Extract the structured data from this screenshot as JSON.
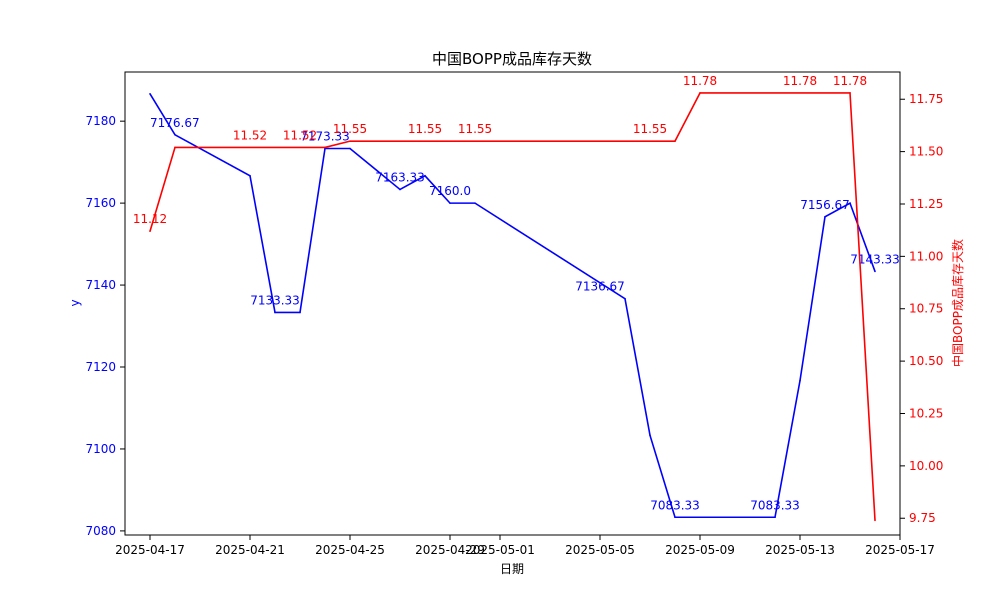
{
  "chart_data": {
    "type": "line",
    "title": "中国BOPP成品库存天数",
    "xlabel": "日期",
    "ylabel_left": "y",
    "ylabel_right": "中国BOPP成品库存天数",
    "x_tick_labels": [
      "2025-04-17",
      "2025-04-21",
      "2025-04-25",
      "2025-04-29",
      "2025-05-01",
      "2025-05-05",
      "2025-05-09",
      "2025-05-13",
      "2025-05-17"
    ],
    "xlim": [
      "2025-04-16",
      "2025-05-17"
    ],
    "ylim_left": [
      7079,
      7192
    ],
    "ylim_right": [
      9.67,
      11.88
    ],
    "left_ticks": [
      "7080",
      "7100",
      "7120",
      "7140",
      "7160",
      "7180"
    ],
    "right_ticks": [
      "9.75",
      "10.00",
      "10.25",
      "10.50",
      "10.75",
      "11.00",
      "11.25",
      "11.50",
      "11.75"
    ],
    "series": [
      {
        "axis": "left",
        "color": "#0000ff",
        "points": [
          {
            "x": "2025-04-17",
            "y": 7186.67
          },
          {
            "x": "2025-04-18",
            "y": 7176.67
          },
          {
            "x": "2025-04-21",
            "y": 7166.67
          },
          {
            "x": "2025-04-22",
            "y": 7133.33
          },
          {
            "x": "2025-04-23",
            "y": 7133.33
          },
          {
            "x": "2025-04-24",
            "y": 7173.33
          },
          {
            "x": "2025-04-25",
            "y": 7173.33
          },
          {
            "x": "2025-04-27",
            "y": 7163.33
          },
          {
            "x": "2025-04-28",
            "y": 7166.67
          },
          {
            "x": "2025-04-29",
            "y": 7160.0
          },
          {
            "x": "2025-04-30",
            "y": 7160.0
          },
          {
            "x": "2025-05-06",
            "y": 7136.67
          },
          {
            "x": "2025-05-07",
            "y": 7103.33
          },
          {
            "x": "2025-05-08",
            "y": 7083.33
          },
          {
            "x": "2025-05-12",
            "y": 7083.33
          },
          {
            "x": "2025-05-13",
            "y": 7116.67
          },
          {
            "x": "2025-05-14",
            "y": 7156.67
          },
          {
            "x": "2025-05-15",
            "y": 7160.0
          },
          {
            "x": "2025-05-16",
            "y": 7143.33
          }
        ],
        "labels": [
          {
            "x": "2025-04-17",
            "y": 7176.67,
            "text": "7176.67",
            "anchor": "start"
          },
          {
            "x": "2025-04-22",
            "y": 7133.33,
            "text": "7133.33",
            "anchor": "middle"
          },
          {
            "x": "2025-04-24",
            "y": 7173.33,
            "text": "7173.33",
            "anchor": "middle"
          },
          {
            "x": "2025-04-27",
            "y": 7163.33,
            "text": "7163.33",
            "anchor": "middle"
          },
          {
            "x": "2025-04-29",
            "y": 7160.0,
            "text": "7160.0",
            "anchor": "middle"
          },
          {
            "x": "2025-05-05",
            "y": 7136.67,
            "text": "7136.67",
            "anchor": "middle"
          },
          {
            "x": "2025-05-08",
            "y": 7083.33,
            "text": "7083.33",
            "anchor": "middle"
          },
          {
            "x": "2025-05-12",
            "y": 7083.33,
            "text": "7083.33",
            "anchor": "middle"
          },
          {
            "x": "2025-05-14",
            "y": 7156.67,
            "text": "7156.67",
            "anchor": "middle"
          },
          {
            "x": "2025-05-16",
            "y": 7143.33,
            "text": "7143.33",
            "anchor": "middle"
          }
        ]
      },
      {
        "axis": "right",
        "color": "#ff0000",
        "points": [
          {
            "x": "2025-04-17",
            "y": 11.12
          },
          {
            "x": "2025-04-18",
            "y": 11.52
          },
          {
            "x": "2025-04-24",
            "y": 11.52
          },
          {
            "x": "2025-04-25",
            "y": 11.55
          },
          {
            "x": "2025-05-08",
            "y": 11.55
          },
          {
            "x": "2025-05-09",
            "y": 11.78
          },
          {
            "x": "2025-05-15",
            "y": 11.78
          },
          {
            "x": "2025-05-16",
            "y": 9.74
          }
        ],
        "labels": [
          {
            "x": "2025-04-17",
            "y": 11.12,
            "text": "11.12"
          },
          {
            "x": "2025-04-21",
            "y": 11.52,
            "text": "11.52"
          },
          {
            "x": "2025-04-23",
            "y": 11.52,
            "text": "11.52"
          },
          {
            "x": "2025-04-25",
            "y": 11.55,
            "text": "11.55"
          },
          {
            "x": "2025-04-28",
            "y": 11.55,
            "text": "11.55"
          },
          {
            "x": "2025-04-30",
            "y": 11.55,
            "text": "11.55"
          },
          {
            "x": "2025-05-07",
            "y": 11.55,
            "text": "11.55"
          },
          {
            "x": "2025-05-09",
            "y": 11.78,
            "text": "11.78"
          },
          {
            "x": "2025-05-13",
            "y": 11.78,
            "text": "11.78"
          },
          {
            "x": "2025-05-15",
            "y": 11.78,
            "text": "11.78"
          }
        ]
      }
    ]
  }
}
